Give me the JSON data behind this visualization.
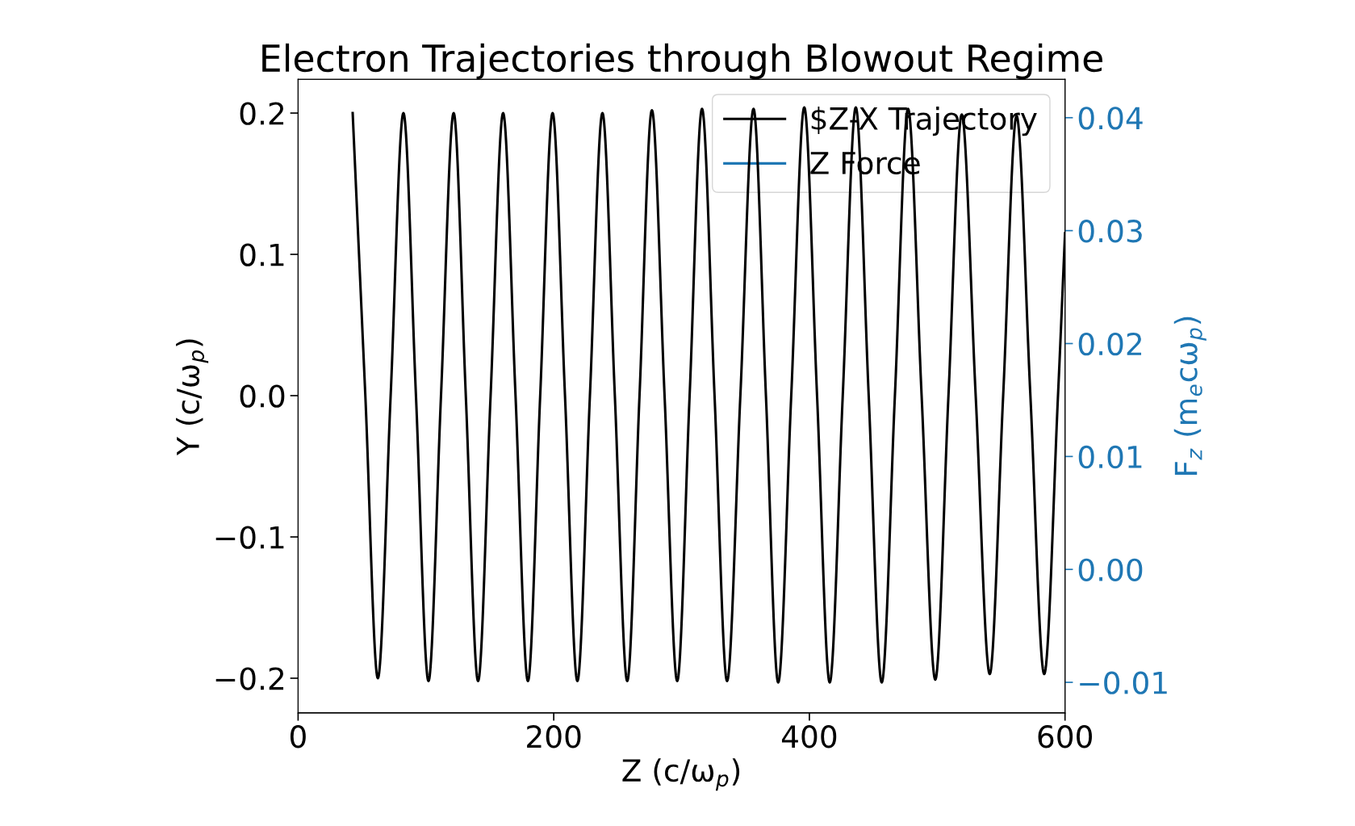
{
  "chart_data": {
    "type": "line",
    "title": "Electron Trajectories through Blowout Regime",
    "xlabel": "Z (c/ω$_{p}$)",
    "ylabel": "Y (c/ω$_{p}$)",
    "y2label": "F$_{z}$ (m$_{e}$cω$_{p}$)",
    "xlim": [
      0,
      600
    ],
    "xticks": [
      0,
      200,
      400,
      600
    ],
    "ylim": [
      -0.2245,
      0.2239
    ],
    "yticks": [
      {
        "value": -0.2,
        "label": "−0.2"
      },
      {
        "value": -0.1,
        "label": "−0.1"
      },
      {
        "value": 0,
        "label": "0.0"
      },
      0.1,
      0.2
    ],
    "y2lim": [
      -0.0127,
      0.0434
    ],
    "y2ticks": [
      {
        "value": -0.01,
        "label": "−0.01"
      },
      {
        "value": 0,
        "label": "0.00"
      },
      0.01,
      0.02,
      0.03,
      0.04
    ],
    "grid": false,
    "legend": "top right",
    "marker": "none",
    "line_style": "solid",
    "series": [
      {
        "name": "$Z-X Trajectory",
        "color": "#000000",
        "x": [
          42.7,
          52.6,
          62.4,
          72.4,
          82.4,
          92.2,
          102.0,
          111.8,
          121.7,
          131.2,
          140.8,
          150.6,
          160.4,
          170.1,
          179.8,
          189.4,
          199.1,
          208.8,
          218.5,
          228.3,
          238.1,
          247.8,
          257.5,
          267.1,
          276.8,
          286.7,
          296.6,
          306.3,
          316.0,
          325.8,
          335.6,
          346.0,
          356.3,
          366.0,
          375.6,
          385.8,
          396.0,
          406.0,
          415.9,
          426.1,
          436.3,
          446.4,
          456.6,
          466.9,
          477.2,
          487.8,
          498.5,
          508.8,
          519.2,
          530.1,
          541.1,
          551.6,
          562.1,
          572.9,
          583.7,
          594.5,
          600
        ],
        "values": [
          0.2,
          0,
          -0.2,
          0,
          0.2,
          0,
          -0.202,
          0,
          0.2,
          0,
          -0.202,
          0,
          0.2,
          0,
          -0.202,
          0,
          0.2,
          0,
          -0.202,
          0,
          0.2,
          0,
          -0.202,
          0,
          0.202,
          0,
          -0.202,
          0,
          0.203,
          0,
          -0.202,
          0,
          0.203,
          0,
          -0.203,
          0,
          0.204,
          0,
          -0.203,
          0,
          0.204,
          0,
          -0.203,
          0,
          0.203,
          0,
          -0.201,
          0,
          0.199,
          0,
          -0.197,
          0,
          0.198,
          0,
          -0.197,
          0,
          0.115
        ]
      },
      {
        "name": "Z Force",
        "color": "#1f77b4",
        "axis": "y2"
      }
    ]
  }
}
